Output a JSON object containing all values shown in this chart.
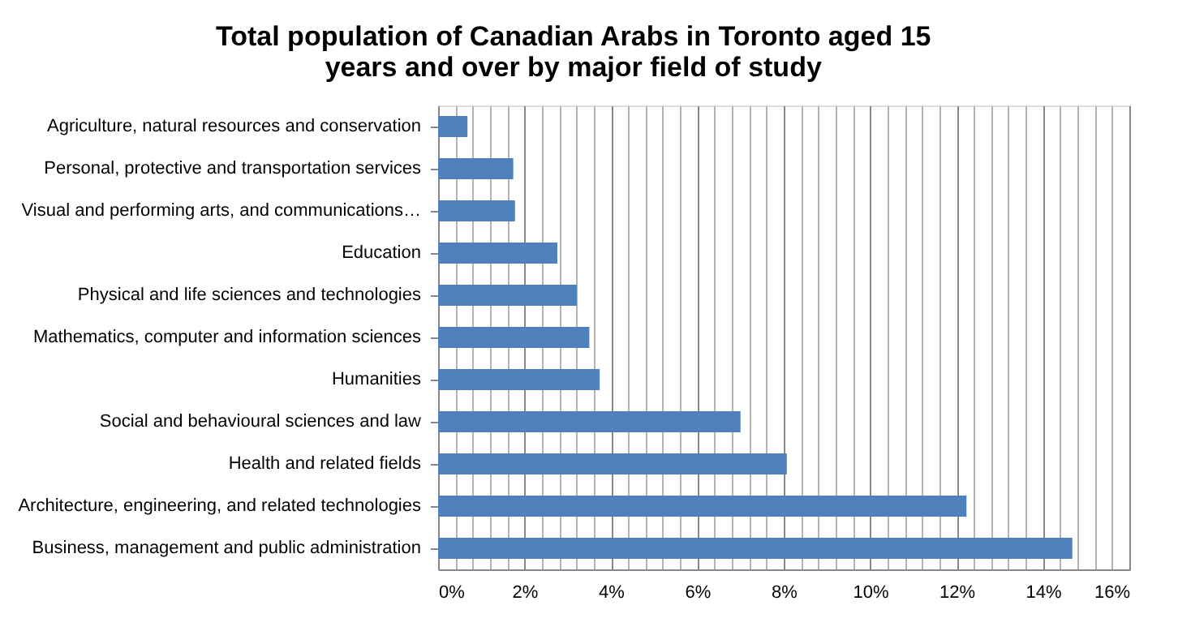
{
  "chart_data": {
    "type": "bar",
    "orientation": "horizontal",
    "title": [
      "Total population of Canadian Arabs in Toronto aged 15",
      "years and over by major field of study"
    ],
    "categories": [
      "Agriculture, natural resources and conservation",
      "Personal, protective and transportation services",
      "Visual and performing arts, and communications…",
      "Education",
      "Physical and life sciences and technologies",
      "Mathematics, computer and information sciences",
      "Humanities",
      "Social and behavioural sciences and law",
      "Health and related fields",
      "Architecture, engineering, and related technologies",
      "Business, management and public administration"
    ],
    "values": [
      0.68,
      1.74,
      1.78,
      2.76,
      3.21,
      3.5,
      3.74,
      7.0,
      8.07,
      12.23,
      14.68
    ],
    "color": "#4f81bd",
    "xlim": [
      0,
      16
    ],
    "xticks": [
      {
        "value": 0,
        "label": "0%"
      },
      {
        "value": 0.4,
        "label": null
      },
      {
        "value": 0.8,
        "label": null
      },
      {
        "value": 1.2,
        "label": null
      },
      {
        "value": 1.6,
        "label": null
      },
      {
        "value": 2,
        "label": "2%"
      },
      {
        "value": 2.4,
        "label": null
      },
      {
        "value": 2.8,
        "label": null
      },
      {
        "value": 3.2,
        "label": null
      },
      {
        "value": 3.6,
        "label": null
      },
      {
        "value": 4,
        "label": "4%"
      },
      {
        "value": 4.4,
        "label": null
      },
      {
        "value": 4.8,
        "label": null
      },
      {
        "value": 5.2,
        "label": null
      },
      {
        "value": 5.6,
        "label": null
      },
      {
        "value": 6,
        "label": "6%"
      },
      {
        "value": 6.4,
        "label": null
      },
      {
        "value": 6.8,
        "label": null
      },
      {
        "value": 7.2,
        "label": null
      },
      {
        "value": 7.6,
        "label": null
      },
      {
        "value": 8,
        "label": "8%"
      },
      {
        "value": 8.4,
        "label": null
      },
      {
        "value": 8.8,
        "label": null
      },
      {
        "value": 9.2,
        "label": null
      },
      {
        "value": 9.6,
        "label": null
      },
      {
        "value": 10,
        "label": "10%"
      },
      {
        "value": 10.4,
        "label": null
      },
      {
        "value": 10.8,
        "label": null
      },
      {
        "value": 11.2,
        "label": null
      },
      {
        "value": 11.6,
        "label": null
      },
      {
        "value": 12,
        "label": "12%"
      },
      {
        "value": 12.4,
        "label": null
      },
      {
        "value": 12.8,
        "label": null
      },
      {
        "value": 13.2,
        "label": null
      },
      {
        "value": 13.6,
        "label": null
      },
      {
        "value": 14,
        "label": "14%"
      },
      {
        "value": 14.4,
        "label": null
      },
      {
        "value": 14.8,
        "label": null
      },
      {
        "value": 15.2,
        "label": null
      },
      {
        "value": 15.6,
        "label": null
      },
      {
        "value": 16,
        "label": "16%"
      }
    ],
    "grid": "x"
  }
}
